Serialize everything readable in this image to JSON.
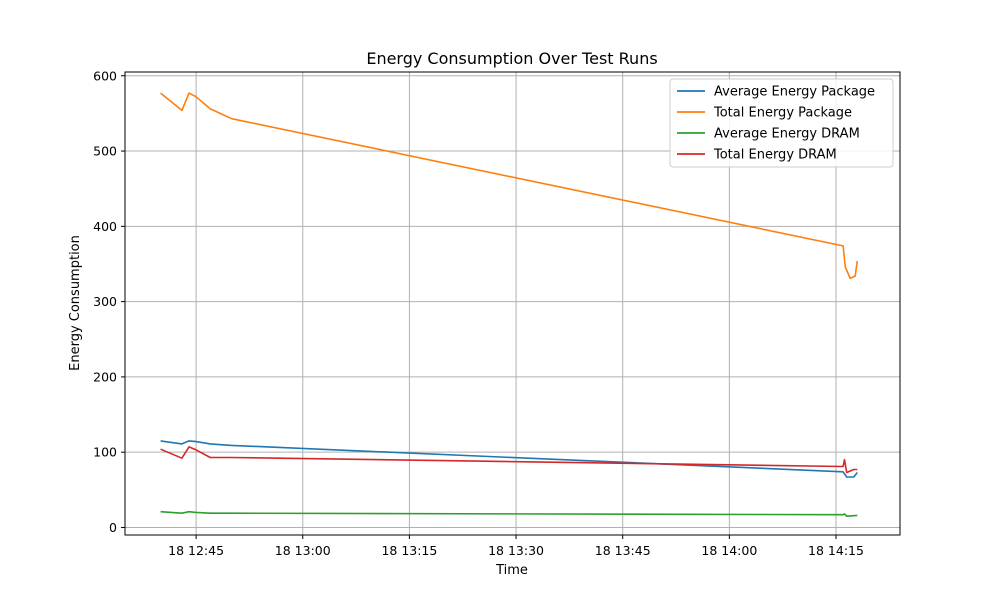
{
  "chart_data": {
    "type": "line",
    "title": "Energy Consumption Over Test Runs",
    "xlabel": "Time",
    "ylabel": "Energy Consumption",
    "x_ticks": [
      {
        "t": "12:45",
        "label": "18 12:45"
      },
      {
        "t": "13:00",
        "label": "18 13:00"
      },
      {
        "t": "13:15",
        "label": "18 13:15"
      },
      {
        "t": "13:30",
        "label": "18 13:30"
      },
      {
        "t": "13:45",
        "label": "18 13:45"
      },
      {
        "t": "14:00",
        "label": "18 14:00"
      },
      {
        "t": "14:15",
        "label": "18 14:15"
      }
    ],
    "xlim": [
      "12:35",
      "14:24"
    ],
    "ylim": [
      -10,
      605
    ],
    "y_ticks": [
      0,
      100,
      200,
      300,
      400,
      500,
      600
    ],
    "grid": true,
    "legend_position": "top-right",
    "series": [
      {
        "name": "Average Energy Package",
        "color": "#1f77b4",
        "points": [
          [
            "12:40",
            115
          ],
          [
            "12:43",
            111
          ],
          [
            "12:44",
            115
          ],
          [
            "12:45",
            114
          ],
          [
            "12:47",
            111
          ],
          [
            "12:50",
            109
          ],
          [
            "14:16",
            74
          ],
          [
            "14:16.5",
            67
          ],
          [
            "14:17.5",
            67
          ],
          [
            "14:18",
            73
          ]
        ]
      },
      {
        "name": "Total Energy Package",
        "color": "#ff7f0e",
        "points": [
          [
            "12:40",
            577
          ],
          [
            "12:43",
            554
          ],
          [
            "12:44",
            577
          ],
          [
            "12:45",
            572
          ],
          [
            "12:47",
            556
          ],
          [
            "12:50",
            543
          ],
          [
            "14:16",
            374
          ],
          [
            "14:16.3",
            346
          ],
          [
            "14:17",
            331
          ],
          [
            "14:17.7",
            334
          ],
          [
            "14:18",
            354
          ]
        ]
      },
      {
        "name": "Average Energy DRAM",
        "color": "#2ca02c",
        "points": [
          [
            "12:40",
            21
          ],
          [
            "12:43",
            19
          ],
          [
            "12:44",
            21
          ],
          [
            "12:45",
            20
          ],
          [
            "12:47",
            19
          ],
          [
            "12:50",
            19
          ],
          [
            "14:16",
            17
          ],
          [
            "14:16.2",
            18
          ],
          [
            "14:16.5",
            15
          ],
          [
            "14:18",
            16
          ]
        ]
      },
      {
        "name": "Total Energy DRAM",
        "color": "#d62728",
        "points": [
          [
            "12:40",
            104
          ],
          [
            "12:43",
            92
          ],
          [
            "12:44",
            107
          ],
          [
            "12:45",
            103
          ],
          [
            "12:47",
            93
          ],
          [
            "12:50",
            93
          ],
          [
            "14:16",
            81
          ],
          [
            "14:16.2",
            90
          ],
          [
            "14:16.5",
            73
          ],
          [
            "14:17.5",
            77
          ],
          [
            "14:18",
            77
          ]
        ]
      }
    ]
  }
}
